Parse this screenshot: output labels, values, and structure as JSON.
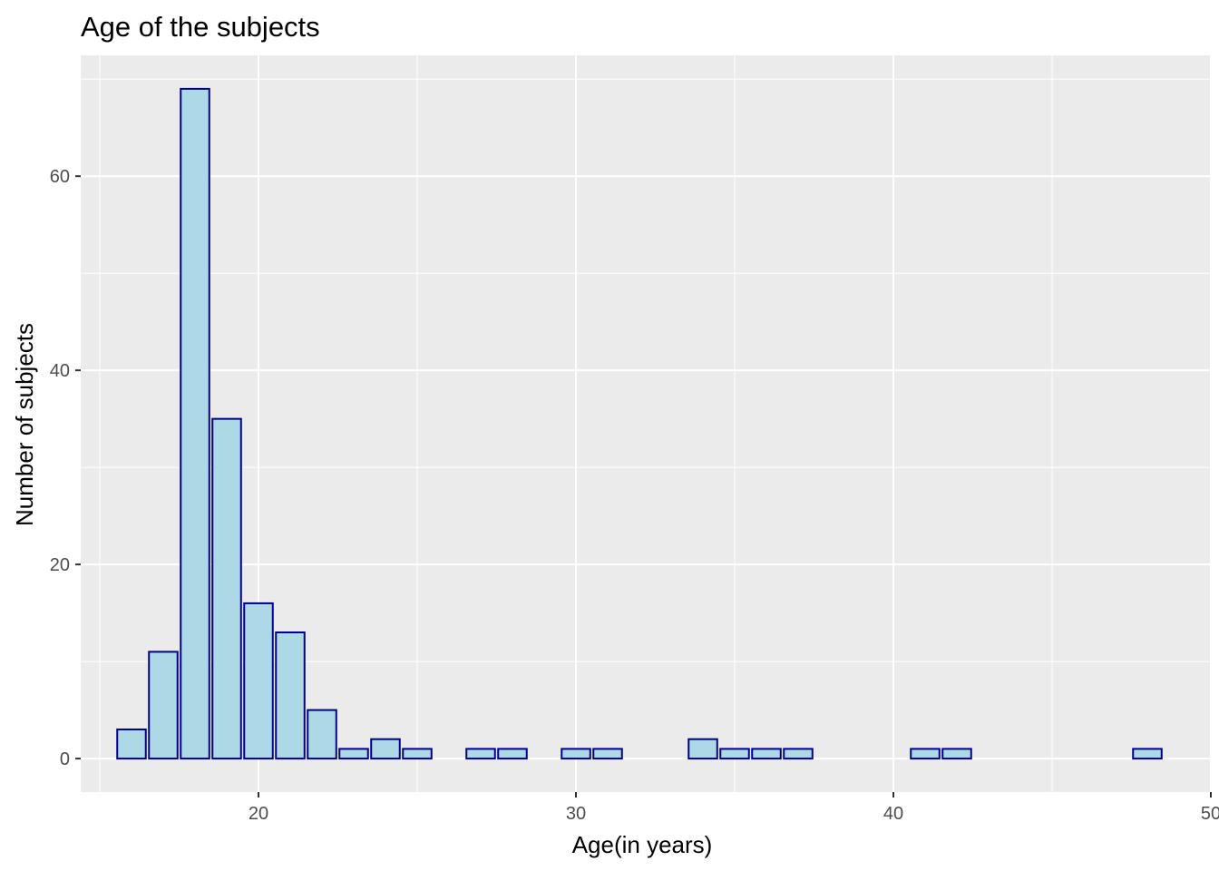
{
  "chart_data": {
    "type": "bar",
    "title": "Age of the subjects",
    "xlabel": "Age(in years)",
    "ylabel": "Number of subjects",
    "xlim": [
      14.4,
      50
    ],
    "ylim": [
      -3.45,
      72.45
    ],
    "xticks": [
      20,
      30,
      40,
      50
    ],
    "yticks": [
      0,
      20,
      40,
      60
    ],
    "grid": true,
    "colors": {
      "panel": "#ebebeb",
      "grid": "#ffffff",
      "bar_fill": "#add8e6",
      "bar_border": "#00008b",
      "tick": "#333333"
    },
    "x": [
      16,
      17,
      18,
      19,
      20,
      21,
      22,
      23,
      24,
      25,
      27,
      28,
      30,
      31,
      34,
      35,
      36,
      37,
      41,
      42,
      48
    ],
    "values": [
      3,
      11,
      69,
      35,
      16,
      13,
      5,
      1,
      2,
      1,
      1,
      1,
      1,
      1,
      2,
      1,
      1,
      1,
      1,
      1,
      1
    ]
  }
}
